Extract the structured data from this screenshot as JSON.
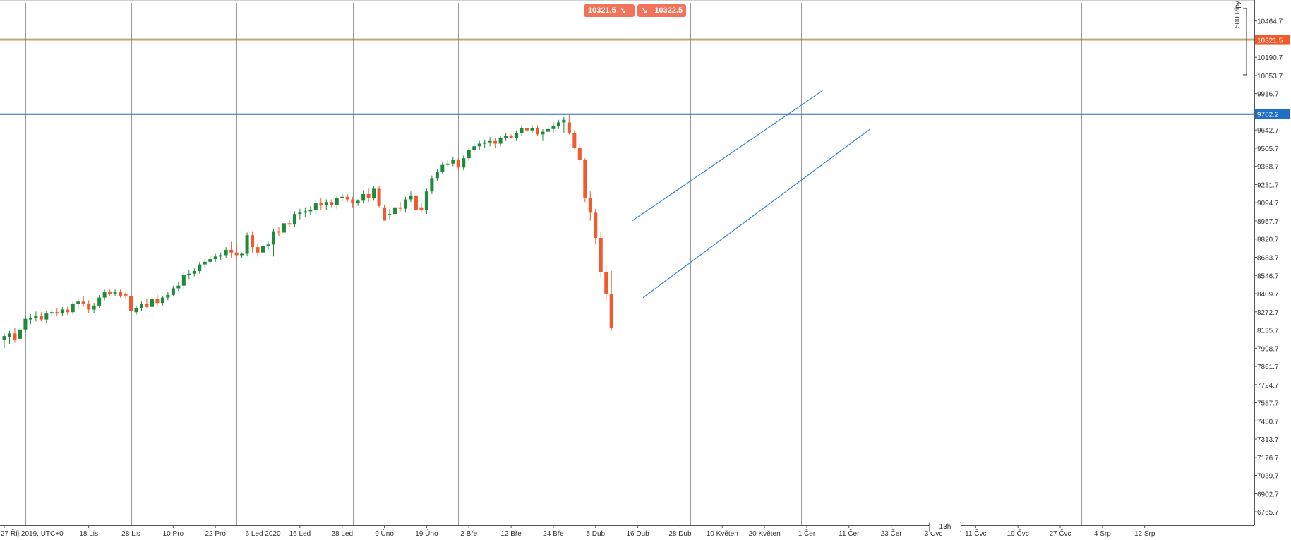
{
  "quote": {
    "bid": "10321.5",
    "ask": "10322.5",
    "bid_icon": "sell-arrow-icon",
    "ask_icon": "buy-arrow-icon"
  },
  "pips_label": "500 Pipy",
  "timeframe": "13h",
  "colors": {
    "up": "#1e8a3c",
    "down": "#f05a2c",
    "level": "#1f6fc4",
    "channel": "#3a85cf",
    "grid": "#9a9a9a",
    "price_tag": "#f05a2c"
  },
  "chart_data": {
    "type": "candlestick",
    "ylim": [
      6665,
      10580
    ],
    "x_axis": {
      "timezone": "UTC+0"
    },
    "y_ticks": [
      10464.7,
      10190.7,
      10053.7,
      9916.7,
      9642.7,
      9505.7,
      9368.7,
      9231.7,
      9094.7,
      8957.7,
      8820.7,
      8683.7,
      8546.7,
      8409.7,
      8272.7,
      8135.7,
      7998.7,
      7861.7,
      7724.7,
      7587.7,
      7450.7,
      7313.7,
      7176.7,
      7039.7,
      6902.7,
      6765.7
    ],
    "x_ticks": [
      {
        "label": "27 Říj 2019, UTC+0",
        "i": 0
      },
      {
        "label": "18 Lis",
        "i": 16
      },
      {
        "label": "28 Lis",
        "i": 24
      },
      {
        "label": "10 Pro",
        "i": 32
      },
      {
        "label": "22 Pro",
        "i": 40
      },
      {
        "label": "6 Led 2020",
        "i": 49
      },
      {
        "label": "16 Led",
        "i": 56
      },
      {
        "label": "28 Led",
        "i": 64
      },
      {
        "label": "9 Úno",
        "i": 72
      },
      {
        "label": "19 Úno",
        "i": 80
      },
      {
        "label": "2 Bře",
        "i": 88
      },
      {
        "label": "12 Bře",
        "i": 96
      },
      {
        "label": "24 Bře",
        "i": 104
      },
      {
        "label": "5 Dub",
        "i": 112
      },
      {
        "label": "16 Dub",
        "i": 120
      },
      {
        "label": "28 Dub",
        "i": 128
      },
      {
        "label": "10 Květen",
        "i": 136
      },
      {
        "label": "20 Květen",
        "i": 144
      },
      {
        "label": "1 Čer",
        "i": 152
      },
      {
        "label": "11 Čer",
        "i": 160
      },
      {
        "label": "23 Čer",
        "i": 168
      },
      {
        "label": "3 Čvc",
        "i": 176
      },
      {
        "label": "11 Čvc",
        "i": 184
      },
      {
        "label": "19 Čvc",
        "i": 192
      },
      {
        "label": "27 Čvc",
        "i": 200
      },
      {
        "label": "4 Srp",
        "i": 208
      },
      {
        "label": "12 Srp",
        "i": 216
      }
    ],
    "vertical_gridlines_at": [
      4,
      24,
      44,
      66,
      86,
      109,
      130,
      151,
      172,
      204
    ],
    "horizontal_levels": [
      {
        "price": 10321.5,
        "label": "10321.5",
        "color": "#f05a2c"
      },
      {
        "price": 9762.2,
        "label": "9762.2",
        "color": "#1f6fc4"
      }
    ],
    "channel": {
      "upper": {
        "from": [
          119,
          8960
        ],
        "to": [
          155,
          9940
        ]
      },
      "lower": {
        "from": [
          121,
          8380
        ],
        "to": [
          164,
          9650
        ]
      }
    },
    "candles": [
      {
        "o": 8060,
        "h": 8110,
        "l": 8000,
        "c": 8090
      },
      {
        "o": 8080,
        "h": 8130,
        "l": 8030,
        "c": 8110
      },
      {
        "o": 8110,
        "h": 8150,
        "l": 8040,
        "c": 8060
      },
      {
        "o": 8070,
        "h": 8160,
        "l": 8050,
        "c": 8140
      },
      {
        "o": 8140,
        "h": 8250,
        "l": 8120,
        "c": 8220
      },
      {
        "o": 8215,
        "h": 8255,
        "l": 8180,
        "c": 8225
      },
      {
        "o": 8225,
        "h": 8275,
        "l": 8200,
        "c": 8240
      },
      {
        "o": 8240,
        "h": 8270,
        "l": 8200,
        "c": 8215
      },
      {
        "o": 8215,
        "h": 8280,
        "l": 8190,
        "c": 8260
      },
      {
        "o": 8260,
        "h": 8290,
        "l": 8240,
        "c": 8270
      },
      {
        "o": 8270,
        "h": 8300,
        "l": 8245,
        "c": 8260
      },
      {
        "o": 8260,
        "h": 8310,
        "l": 8240,
        "c": 8290
      },
      {
        "o": 8290,
        "h": 8310,
        "l": 8250,
        "c": 8270
      },
      {
        "o": 8270,
        "h": 8350,
        "l": 8250,
        "c": 8330
      },
      {
        "o": 8330,
        "h": 8370,
        "l": 8290,
        "c": 8350
      },
      {
        "o": 8350,
        "h": 8390,
        "l": 8310,
        "c": 8330
      },
      {
        "o": 8330,
        "h": 8360,
        "l": 8260,
        "c": 8290
      },
      {
        "o": 8290,
        "h": 8340,
        "l": 8260,
        "c": 8320
      },
      {
        "o": 8320,
        "h": 8400,
        "l": 8300,
        "c": 8380
      },
      {
        "o": 8380,
        "h": 8440,
        "l": 8360,
        "c": 8420
      },
      {
        "o": 8420,
        "h": 8440,
        "l": 8390,
        "c": 8410
      },
      {
        "o": 8410,
        "h": 8440,
        "l": 8390,
        "c": 8420
      },
      {
        "o": 8420,
        "h": 8440,
        "l": 8380,
        "c": 8390
      },
      {
        "o": 8410,
        "h": 8425,
        "l": 8375,
        "c": 8395
      },
      {
        "o": 8390,
        "h": 8400,
        "l": 8220,
        "c": 8280
      },
      {
        "o": 8270,
        "h": 8320,
        "l": 8250,
        "c": 8300
      },
      {
        "o": 8300,
        "h": 8350,
        "l": 8280,
        "c": 8330
      },
      {
        "o": 8330,
        "h": 8370,
        "l": 8300,
        "c": 8310
      },
      {
        "o": 8310,
        "h": 8390,
        "l": 8290,
        "c": 8370
      },
      {
        "o": 8370,
        "h": 8400,
        "l": 8320,
        "c": 8340
      },
      {
        "o": 8340,
        "h": 8390,
        "l": 8320,
        "c": 8380
      },
      {
        "o": 8380,
        "h": 8420,
        "l": 8360,
        "c": 8400
      },
      {
        "o": 8400,
        "h": 8470,
        "l": 8390,
        "c": 8450
      },
      {
        "o": 8450,
        "h": 8500,
        "l": 8430,
        "c": 8470
      },
      {
        "o": 8470,
        "h": 8570,
        "l": 8450,
        "c": 8550
      },
      {
        "o": 8550,
        "h": 8590,
        "l": 8520,
        "c": 8560
      },
      {
        "o": 8560,
        "h": 8600,
        "l": 8540,
        "c": 8580
      },
      {
        "o": 8580,
        "h": 8650,
        "l": 8560,
        "c": 8630
      },
      {
        "o": 8630,
        "h": 8670,
        "l": 8610,
        "c": 8650
      },
      {
        "o": 8650,
        "h": 8690,
        "l": 8630,
        "c": 8670
      },
      {
        "o": 8670,
        "h": 8710,
        "l": 8650,
        "c": 8690
      },
      {
        "o": 8690,
        "h": 8720,
        "l": 8660,
        "c": 8700
      },
      {
        "o": 8700,
        "h": 8760,
        "l": 8680,
        "c": 8740
      },
      {
        "o": 8740,
        "h": 8800,
        "l": 8680,
        "c": 8720
      },
      {
        "o": 8720,
        "h": 8790,
        "l": 8670,
        "c": 8700
      },
      {
        "o": 8700,
        "h": 8720,
        "l": 8680,
        "c": 8710
      },
      {
        "o": 8710,
        "h": 8870,
        "l": 8690,
        "c": 8850
      },
      {
        "o": 8850,
        "h": 8880,
        "l": 8720,
        "c": 8760
      },
      {
        "o": 8760,
        "h": 8790,
        "l": 8690,
        "c": 8720
      },
      {
        "o": 8720,
        "h": 8790,
        "l": 8690,
        "c": 8770
      },
      {
        "o": 8770,
        "h": 8800,
        "l": 8740,
        "c": 8780
      },
      {
        "o": 8780,
        "h": 8900,
        "l": 8690,
        "c": 8880
      },
      {
        "o": 8880,
        "h": 8910,
        "l": 8840,
        "c": 8870
      },
      {
        "o": 8870,
        "h": 8960,
        "l": 8850,
        "c": 8940
      },
      {
        "o": 8940,
        "h": 8970,
        "l": 8910,
        "c": 8930
      },
      {
        "o": 8930,
        "h": 9030,
        "l": 8910,
        "c": 9010
      },
      {
        "o": 9010,
        "h": 9050,
        "l": 8970,
        "c": 9020
      },
      {
        "o": 9020,
        "h": 9060,
        "l": 8990,
        "c": 9030
      },
      {
        "o": 9030,
        "h": 9070,
        "l": 9000,
        "c": 9040
      },
      {
        "o": 9040,
        "h": 9110,
        "l": 9010,
        "c": 9090
      },
      {
        "o": 9090,
        "h": 9130,
        "l": 9040,
        "c": 9080
      },
      {
        "o": 9080,
        "h": 9120,
        "l": 9040,
        "c": 9100
      },
      {
        "o": 9100,
        "h": 9120,
        "l": 9060,
        "c": 9080
      },
      {
        "o": 9080,
        "h": 9150,
        "l": 9050,
        "c": 9130
      },
      {
        "o": 9130,
        "h": 9170,
        "l": 9100,
        "c": 9140
      },
      {
        "o": 9140,
        "h": 9160,
        "l": 9100,
        "c": 9120
      },
      {
        "o": 9120,
        "h": 9140,
        "l": 9060,
        "c": 9090
      },
      {
        "o": 9090,
        "h": 9120,
        "l": 9070,
        "c": 9110
      },
      {
        "o": 9110,
        "h": 9190,
        "l": 9090,
        "c": 9160
      },
      {
        "o": 9160,
        "h": 9200,
        "l": 9100,
        "c": 9130
      },
      {
        "o": 9130,
        "h": 9220,
        "l": 9110,
        "c": 9200
      },
      {
        "o": 9200,
        "h": 9220,
        "l": 9060,
        "c": 9070
      },
      {
        "o": 9060,
        "h": 9080,
        "l": 8980,
        "c": 8960
      },
      {
        "o": 9000,
        "h": 9050,
        "l": 8970,
        "c": 9010
      },
      {
        "o": 9010,
        "h": 9080,
        "l": 8990,
        "c": 9060
      },
      {
        "o": 9060,
        "h": 9100,
        "l": 9030,
        "c": 9050
      },
      {
        "o": 9050,
        "h": 9140,
        "l": 9020,
        "c": 9120
      },
      {
        "o": 9120,
        "h": 9180,
        "l": 9100,
        "c": 9150
      },
      {
        "o": 9150,
        "h": 9170,
        "l": 9030,
        "c": 9040
      },
      {
        "o": 9060,
        "h": 9090,
        "l": 9020,
        "c": 9040
      },
      {
        "o": 9040,
        "h": 9200,
        "l": 9010,
        "c": 9180
      },
      {
        "o": 9180,
        "h": 9300,
        "l": 9160,
        "c": 9280
      },
      {
        "o": 9280,
        "h": 9350,
        "l": 9260,
        "c": 9330
      },
      {
        "o": 9330,
        "h": 9400,
        "l": 9310,
        "c": 9380
      },
      {
        "o": 9380,
        "h": 9420,
        "l": 9360,
        "c": 9390
      },
      {
        "o": 9390,
        "h": 9440,
        "l": 9370,
        "c": 9420
      },
      {
        "o": 9420,
        "h": 9430,
        "l": 9340,
        "c": 9360
      },
      {
        "o": 9360,
        "h": 9450,
        "l": 9340,
        "c": 9430
      },
      {
        "o": 9430,
        "h": 9510,
        "l": 9410,
        "c": 9490
      },
      {
        "o": 9490,
        "h": 9540,
        "l": 9470,
        "c": 9520
      },
      {
        "o": 9520,
        "h": 9560,
        "l": 9490,
        "c": 9540
      },
      {
        "o": 9540,
        "h": 9570,
        "l": 9510,
        "c": 9550
      },
      {
        "o": 9550,
        "h": 9590,
        "l": 9520,
        "c": 9560
      },
      {
        "o": 9560,
        "h": 9580,
        "l": 9510,
        "c": 9540
      },
      {
        "o": 9540,
        "h": 9600,
        "l": 9520,
        "c": 9580
      },
      {
        "o": 9580,
        "h": 9620,
        "l": 9560,
        "c": 9600
      },
      {
        "o": 9600,
        "h": 9610,
        "l": 9580,
        "c": 9585
      },
      {
        "o": 9580,
        "h": 9640,
        "l": 9560,
        "c": 9620
      },
      {
        "o": 9620,
        "h": 9680,
        "l": 9600,
        "c": 9660
      },
      {
        "o": 9660,
        "h": 9690,
        "l": 9610,
        "c": 9640
      },
      {
        "o": 9640,
        "h": 9680,
        "l": 9620,
        "c": 9660
      },
      {
        "o": 9660,
        "h": 9680,
        "l": 9600,
        "c": 9610
      },
      {
        "o": 9610,
        "h": 9650,
        "l": 9560,
        "c": 9630
      },
      {
        "o": 9630,
        "h": 9680,
        "l": 9600,
        "c": 9650
      },
      {
        "o": 9650,
        "h": 9700,
        "l": 9620,
        "c": 9670
      },
      {
        "o": 9670,
        "h": 9720,
        "l": 9650,
        "c": 9700
      },
      {
        "o": 9700,
        "h": 9740,
        "l": 9620,
        "c": 9720
      },
      {
        "o": 9700,
        "h": 9760,
        "l": 9610,
        "c": 9620
      },
      {
        "o": 9620,
        "h": 9640,
        "l": 9500,
        "c": 9510
      },
      {
        "o": 9510,
        "h": 9540,
        "l": 9390,
        "c": 9420
      },
      {
        "o": 9420,
        "h": 9430,
        "l": 9100,
        "c": 9130
      },
      {
        "o": 9130,
        "h": 9180,
        "l": 8960,
        "c": 9020
      },
      {
        "o": 9020,
        "h": 9050,
        "l": 8780,
        "c": 8830
      },
      {
        "o": 8830,
        "h": 8880,
        "l": 8530,
        "c": 8570
      },
      {
        "o": 8570,
        "h": 8620,
        "l": 8360,
        "c": 8410
      },
      {
        "o": 8410,
        "h": 8580,
        "l": 8130,
        "c": 8150
      }
    ]
  }
}
